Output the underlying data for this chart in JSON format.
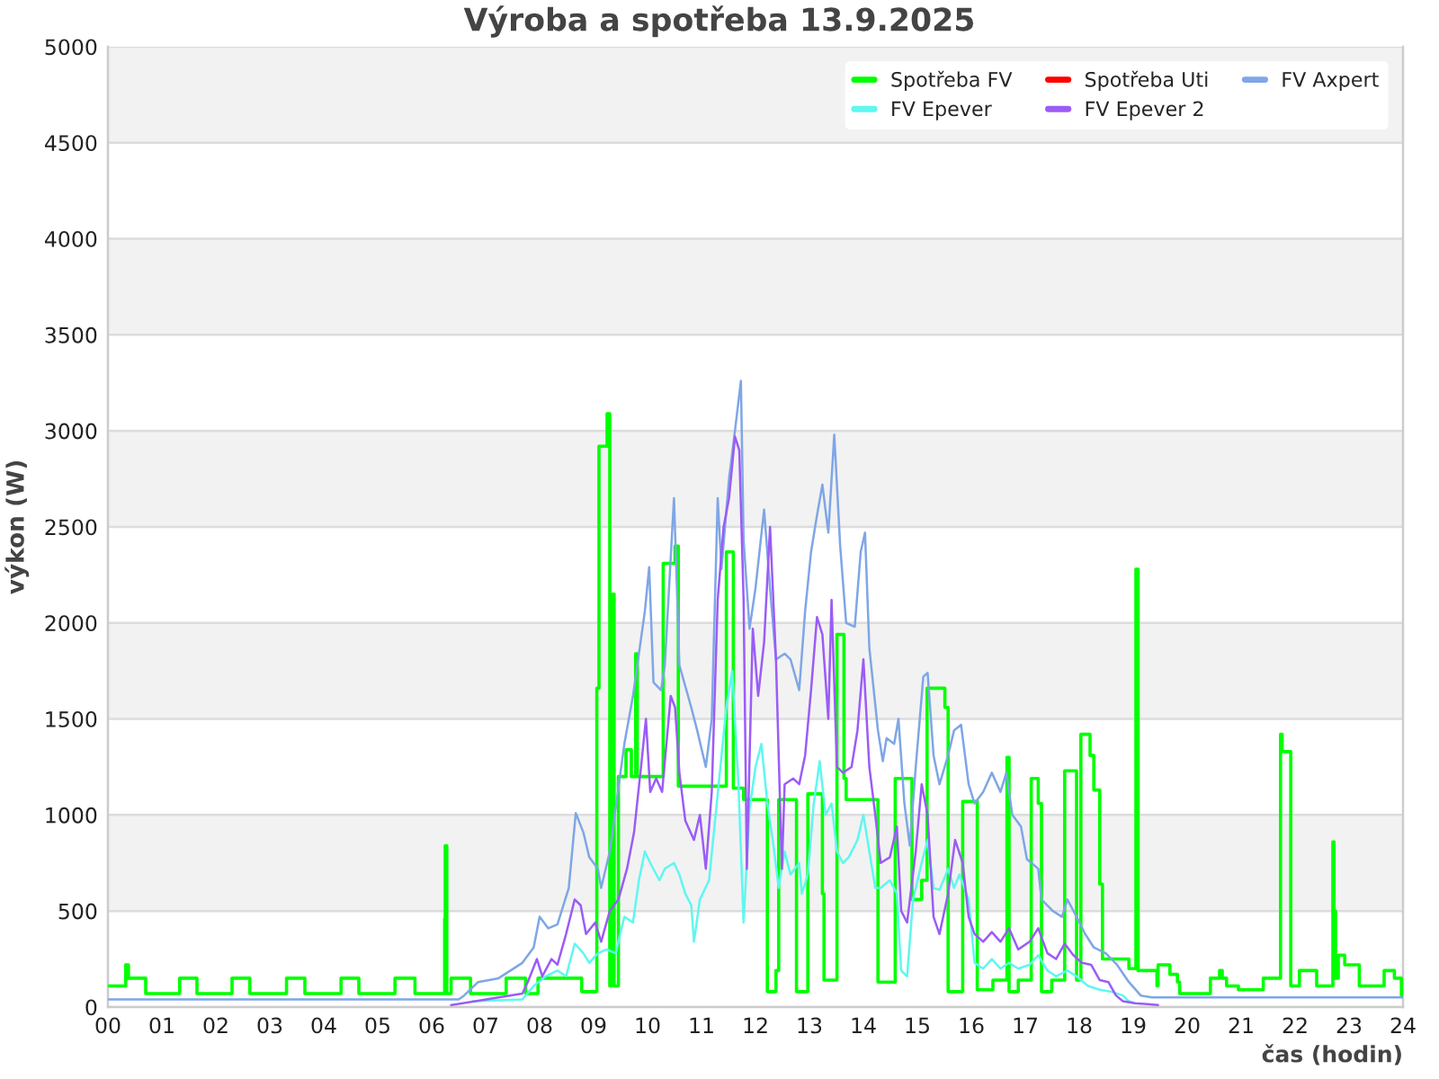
{
  "chart_data": {
    "type": "line",
    "title": "Výroba a spotřeba 13.9.2025",
    "xlabel": "čas (hodin)",
    "ylabel": "výkon (W)",
    "xlim": [
      0,
      24
    ],
    "ylim": [
      0,
      5000
    ],
    "xticks": [
      {
        "value": 0,
        "label": "00"
      },
      {
        "value": 1,
        "label": "01"
      },
      {
        "value": 2,
        "label": "02"
      },
      {
        "value": 3,
        "label": "03"
      },
      {
        "value": 4,
        "label": "04"
      },
      {
        "value": 5,
        "label": "05"
      },
      {
        "value": 6,
        "label": "06"
      },
      {
        "value": 7,
        "label": "07"
      },
      {
        "value": 8,
        "label": "08"
      },
      {
        "value": 9,
        "label": "09"
      },
      10,
      11,
      12,
      13,
      14,
      15,
      16,
      17,
      18,
      19,
      20,
      21,
      22,
      23,
      24
    ],
    "yticks": [
      0,
      500,
      1000,
      1500,
      2000,
      2500,
      3000,
      3500,
      4000,
      4500,
      5000
    ],
    "grid": "y",
    "legend": "top right",
    "series": [
      {
        "name": "Spotřeba FV",
        "type": "step",
        "color": "#00ff00",
        "x": [
          0,
          0.33,
          0.38,
          0.7,
          1.33,
          1.65,
          2.3,
          2.63,
          3.31,
          3.65,
          4.32,
          4.65,
          5.32,
          5.69,
          6.24,
          6.25,
          6.28,
          6.36,
          6.72,
          7.38,
          7.74,
          7.97,
          8.78,
          9.06,
          9.1,
          9.25,
          9.3,
          9.33,
          9.38,
          9.46,
          9.6,
          9.7,
          9.78,
          9.81,
          10.29,
          10.51,
          10.57,
          11.46,
          11.59,
          11.78,
          12.22,
          12.38,
          12.43,
          12.76,
          12.97,
          13.24,
          13.27,
          13.51,
          13.64,
          13.68,
          14.27,
          14.59,
          14.9,
          15.08,
          15.18,
          15.51,
          15.57,
          15.84,
          16.11,
          16.4,
          16.66,
          16.7,
          16.87,
          17.11,
          17.24,
          17.3,
          17.49,
          17.73,
          17.95,
          18.03,
          18.2,
          18.27,
          18.38,
          18.43,
          18.92,
          19.05,
          19.09,
          19.44,
          19.46,
          19.68,
          19.82,
          19.86,
          20.43,
          20.6,
          20.65,
          20.73,
          20.95,
          21.41,
          21.73,
          21.76,
          21.92,
          22.08,
          22.4,
          22.7,
          22.72,
          22.75,
          22.8,
          22.92,
          23.19,
          23.65,
          23.84,
          23.97,
          24
        ],
        "values": [
          110,
          220,
          150,
          70,
          150,
          70,
          150,
          70,
          150,
          70,
          150,
          70,
          150,
          70,
          460,
          840,
          70,
          150,
          70,
          150,
          70,
          150,
          80,
          1660,
          2920,
          3090,
          110,
          2150,
          110,
          1200,
          1340,
          1200,
          1840,
          1200,
          2310,
          2400,
          1150,
          2370,
          1140,
          1080,
          80,
          190,
          1080,
          80,
          1110,
          590,
          140,
          1940,
          1190,
          1080,
          130,
          1190,
          560,
          660,
          1660,
          1560,
          80,
          1070,
          90,
          140,
          1300,
          80,
          140,
          1190,
          1060,
          80,
          140,
          1230,
          140,
          1420,
          1310,
          1130,
          640,
          250,
          200,
          2280,
          190,
          110,
          220,
          170,
          130,
          70,
          150,
          190,
          150,
          110,
          90,
          150,
          1420,
          1330,
          110,
          190,
          110,
          860,
          500,
          150,
          270,
          220,
          110,
          190,
          150,
          60,
          60
        ]
      },
      {
        "name": "Spotřeba Uti",
        "color": "#ff0000"
      },
      {
        "name": "FV Axpert",
        "color": "#7fa6e6",
        "x": [
          0,
          6.5,
          6.6,
          6.86,
          7.24,
          7.46,
          7.68,
          7.89,
          8.0,
          8.16,
          8.33,
          8.54,
          8.67,
          8.81,
          8.92,
          9.08,
          9.14,
          9.3,
          9.57,
          9.73,
          9.95,
          10.03,
          10.11,
          10.25,
          10.32,
          10.49,
          10.59,
          10.81,
          10.92,
          11.08,
          11.19,
          11.3,
          11.37,
          11.51,
          11.62,
          11.73,
          11.78,
          11.89,
          12.0,
          12.16,
          12.27,
          12.38,
          12.54,
          12.65,
          12.81,
          12.92,
          13.03,
          13.14,
          13.24,
          13.35,
          13.46,
          13.57,
          13.68,
          13.84,
          13.95,
          14.03,
          14.11,
          14.27,
          14.36,
          14.43,
          14.57,
          14.65,
          14.76,
          14.86,
          14.97,
          15.11,
          15.19,
          15.3,
          15.41,
          15.57,
          15.68,
          15.81,
          15.95,
          16.06,
          16.22,
          16.38,
          16.54,
          16.65,
          16.76,
          16.92,
          17.03,
          17.24,
          17.3,
          17.51,
          17.68,
          17.78,
          17.95,
          18.11,
          18.27,
          18.49,
          18.7,
          18.92,
          19.14,
          19.35,
          24
        ],
        "values": [
          40,
          40,
          60,
          130,
          150,
          190,
          230,
          310,
          470,
          410,
          430,
          620,
          1010,
          910,
          780,
          720,
          620,
          810,
          1370,
          1620,
          2060,
          2290,
          1690,
          1650,
          1780,
          2650,
          1780,
          1560,
          1440,
          1250,
          1500,
          2650,
          2280,
          2750,
          3000,
          3260,
          2430,
          1970,
          2180,
          2590,
          2180,
          1810,
          1840,
          1810,
          1650,
          2060,
          2370,
          2560,
          2720,
          2470,
          2980,
          2400,
          2000,
          1980,
          2370,
          2470,
          1870,
          1440,
          1280,
          1400,
          1370,
          1500,
          1060,
          840,
          1250,
          1720,
          1740,
          1310,
          1160,
          1310,
          1440,
          1470,
          1160,
          1060,
          1120,
          1220,
          1120,
          1220,
          1000,
          940,
          770,
          720,
          560,
          500,
          470,
          560,
          470,
          380,
          310,
          280,
          220,
          130,
          60,
          50,
          50
        ]
      },
      {
        "name": "FV Epever",
        "color": "#5ff7ef",
        "x": [
          6.76,
          7.68,
          7.89,
          8.11,
          8.33,
          8.49,
          8.65,
          8.81,
          8.92,
          9.08,
          9.24,
          9.41,
          9.57,
          9.73,
          9.84,
          9.95,
          10.05,
          10.22,
          10.32,
          10.49,
          10.59,
          10.7,
          10.81,
          10.86,
          10.97,
          11.14,
          11.24,
          11.35,
          11.46,
          11.57,
          11.68,
          11.78,
          11.89,
          12.0,
          12.11,
          12.22,
          12.32,
          12.43,
          12.54,
          12.65,
          12.81,
          12.86,
          12.97,
          13.08,
          13.19,
          13.3,
          13.41,
          13.51,
          13.62,
          13.73,
          13.89,
          14.0,
          14.11,
          14.22,
          14.32,
          14.49,
          14.62,
          14.7,
          14.81,
          14.92,
          15.08,
          15.19,
          15.3,
          15.41,
          15.57,
          15.68,
          15.78,
          15.95,
          16.06,
          16.22,
          16.38,
          16.54,
          16.7,
          16.87,
          17.08,
          17.24,
          17.41,
          17.57,
          17.78,
          17.95,
          18.16,
          18.38,
          18.59,
          18.81,
          18.92,
          19.03
        ],
        "values": [
          30,
          40,
          110,
          160,
          190,
          160,
          330,
          280,
          230,
          280,
          300,
          280,
          470,
          440,
          660,
          810,
          750,
          660,
          720,
          750,
          690,
          590,
          530,
          340,
          560,
          660,
          940,
          1250,
          1560,
          1750,
          1190,
          440,
          1030,
          1250,
          1370,
          1060,
          870,
          620,
          810,
          690,
          750,
          590,
          690,
          1060,
          1280,
          1000,
          1060,
          810,
          750,
          780,
          870,
          1000,
          810,
          620,
          620,
          660,
          590,
          190,
          160,
          560,
          750,
          870,
          620,
          610,
          720,
          620,
          690,
          560,
          230,
          200,
          250,
          200,
          230,
          200,
          220,
          270,
          190,
          160,
          190,
          160,
          110,
          90,
          80,
          60,
          30,
          20
        ]
      },
      {
        "name": "FV Epever 2",
        "color": "#9b5cf6",
        "x": [
          6.36,
          6.81,
          7.24,
          7.68,
          7.78,
          7.95,
          8.05,
          8.22,
          8.33,
          8.49,
          8.65,
          8.76,
          8.86,
          9.03,
          9.14,
          9.3,
          9.46,
          9.62,
          9.75,
          9.89,
          9.97,
          10.05,
          10.16,
          10.27,
          10.43,
          10.51,
          10.59,
          10.7,
          10.86,
          10.97,
          11.08,
          11.19,
          11.3,
          11.41,
          11.51,
          11.62,
          11.7,
          11.78,
          11.84,
          11.95,
          12.05,
          12.16,
          12.27,
          12.38,
          12.49,
          12.54,
          12.7,
          12.81,
          12.92,
          13.03,
          13.14,
          13.24,
          13.35,
          13.41,
          13.51,
          13.62,
          13.78,
          13.89,
          14.0,
          14.11,
          14.22,
          14.32,
          14.49,
          14.62,
          14.7,
          14.81,
          14.97,
          15.08,
          15.19,
          15.3,
          15.41,
          15.57,
          15.7,
          15.84,
          15.95,
          16.06,
          16.22,
          16.38,
          16.54,
          16.7,
          16.87,
          17.08,
          17.24,
          17.41,
          17.57,
          17.73,
          17.89,
          18.05,
          18.22,
          18.38,
          18.54,
          18.68,
          18.81,
          19.03,
          19.46
        ],
        "values": [
          10,
          30,
          50,
          70,
          130,
          250,
          160,
          250,
          220,
          380,
          560,
          530,
          380,
          440,
          340,
          500,
          560,
          720,
          910,
          1280,
          1500,
          1120,
          1190,
          1120,
          1620,
          1560,
          1220,
          970,
          870,
          1000,
          720,
          1120,
          2120,
          2500,
          2650,
          2970,
          2900,
          2120,
          720,
          1970,
          1620,
          1900,
          2500,
          1810,
          720,
          1160,
          1190,
          1160,
          1310,
          1650,
          2030,
          1940,
          1500,
          2120,
          1250,
          1220,
          1250,
          1440,
          1810,
          1250,
          1000,
          750,
          780,
          940,
          500,
          440,
          810,
          1160,
          1000,
          470,
          380,
          590,
          870,
          750,
          470,
          380,
          340,
          390,
          340,
          410,
          300,
          340,
          410,
          280,
          250,
          330,
          270,
          230,
          220,
          140,
          130,
          60,
          30,
          20,
          10
        ]
      }
    ]
  }
}
